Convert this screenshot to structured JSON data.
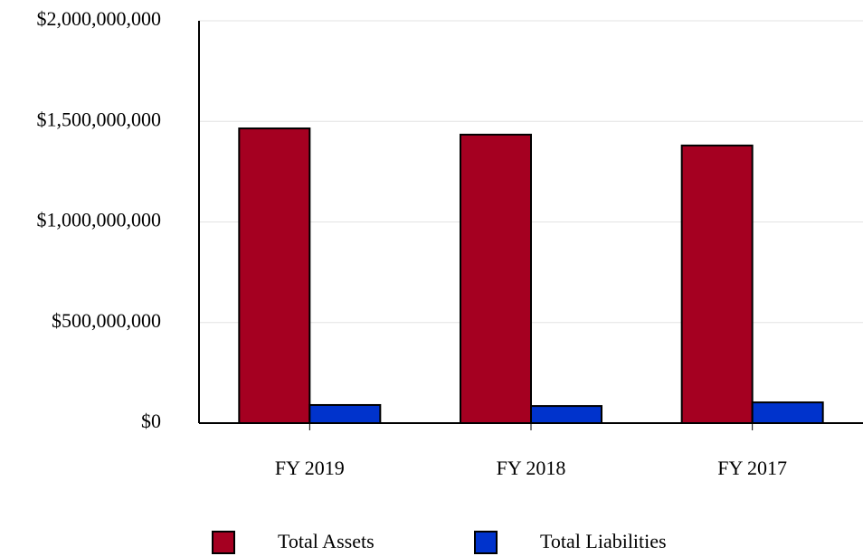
{
  "chart_data": {
    "type": "bar",
    "categories": [
      "FY 2019",
      "FY 2018",
      "FY 2017"
    ],
    "series": [
      {
        "name": "Total Assets",
        "color": "#a50021",
        "values": [
          1465000000,
          1434000000,
          1380000000
        ]
      },
      {
        "name": "Total Liabilities",
        "color": "#0033cc",
        "values": [
          90000000,
          85000000,
          103000000
        ]
      }
    ],
    "ylim": [
      0,
      2000000000
    ],
    "yticks": [
      {
        "value": 0,
        "label": "$0"
      },
      {
        "value": 500000000,
        "label": "$500,000,000"
      },
      {
        "value": 1000000000,
        "label": "$1,000,000,000"
      },
      {
        "value": 1500000000,
        "label": "$1,500,000,000"
      },
      {
        "value": 2000000000,
        "label": "$2,000,000,000"
      }
    ],
    "grid": true,
    "legend": "bottom"
  }
}
